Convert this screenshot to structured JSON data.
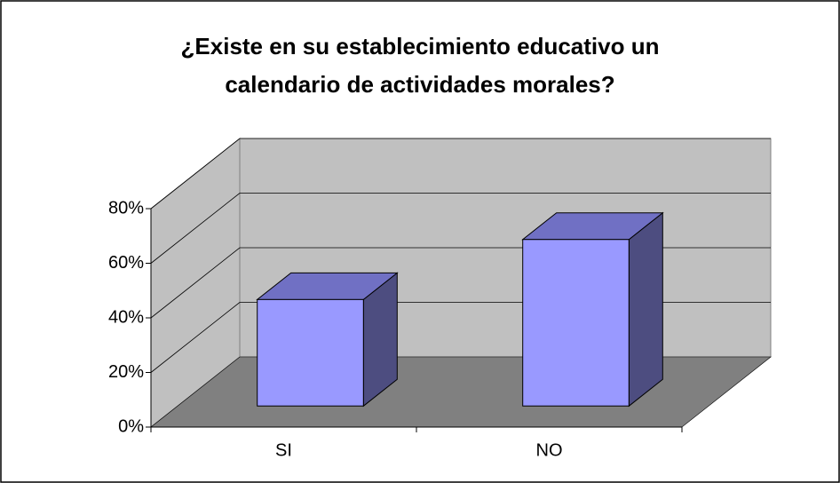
{
  "chart_data": {
    "type": "bar3d",
    "title_lines": [
      "¿Existe en su establecimiento educativo un",
      "calendario de actividades morales?"
    ],
    "categories": [
      "SI",
      "NO"
    ],
    "values": [
      39,
      61
    ],
    "color": "#9999ff",
    "ylim": [
      0,
      80
    ],
    "yticks": [
      {
        "value": 0,
        "label": "0%"
      },
      {
        "value": 20,
        "label": "20%"
      },
      {
        "value": 40,
        "label": "40%"
      },
      {
        "value": 60,
        "label": "60%"
      },
      {
        "value": 80,
        "label": "80%"
      }
    ],
    "grid": true
  }
}
